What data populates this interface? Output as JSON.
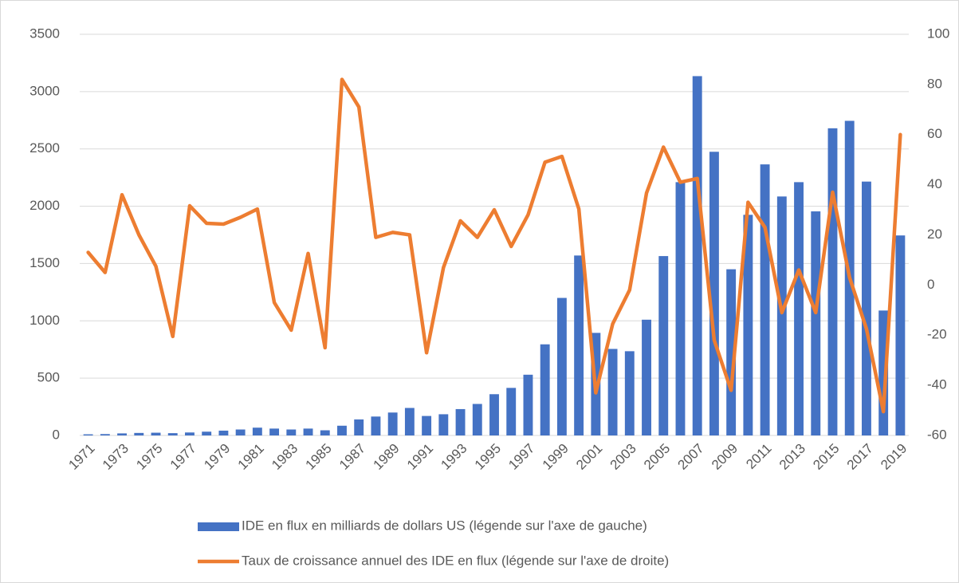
{
  "chart_data": {
    "type": "combo",
    "categories": [
      "1971",
      null,
      "1973",
      null,
      "1975",
      null,
      "1977",
      null,
      "1979",
      null,
      "1981",
      null,
      "1983",
      null,
      "1985",
      null,
      "1987",
      null,
      "1989",
      null,
      "1991",
      null,
      "1993",
      null,
      "1995",
      null,
      "1997",
      null,
      "1999",
      null,
      "2001",
      null,
      "2003",
      null,
      "2005",
      null,
      "2007",
      null,
      "2009",
      null,
      "2011",
      null,
      "2013",
      null,
      "2015",
      null,
      "2017",
      null,
      "2019"
    ],
    "series": [
      {
        "name": "IDE en flux en milliards de dollars US (légende sur l'axe de gauche)",
        "type": "bar",
        "color": "#4472c4",
        "values": [
          10,
          12,
          18,
          22,
          24,
          20,
          26,
          33,
          42,
          52,
          68,
          60,
          52,
          60,
          45,
          85,
          140,
          165,
          200,
          240,
          170,
          185,
          230,
          275,
          360,
          415,
          530,
          795,
          1200,
          1570,
          895,
          755,
          735,
          1010,
          1565,
          2210,
          3135,
          2475,
          1450,
          1925,
          2365,
          2085,
          2210,
          1955,
          2680,
          2745,
          2215,
          1090,
          1745
        ]
      },
      {
        "name": "Taux de croissance annuel des IDE en flux (légende sur l'axe de droite)",
        "type": "line",
        "axis": "y2",
        "color": "#ed7d31",
        "values": [
          13,
          5,
          36,
          20,
          7.5,
          -20.5,
          31.6,
          24.6,
          24.3,
          27,
          30.3,
          -7,
          -18,
          12.6,
          -25,
          82,
          71,
          19,
          21,
          20,
          -27,
          7,
          25.6,
          19,
          30,
          15.4,
          28,
          49,
          51.3,
          30.3,
          -43,
          -15.5,
          -2,
          36.7,
          55,
          41,
          42.5,
          -22,
          -42,
          33,
          23,
          -11,
          6,
          -11,
          37,
          3,
          -17.5,
          -50.5,
          60
        ]
      }
    ],
    "ylim": [
      0,
      3500
    ],
    "yticks": [
      0,
      500,
      1000,
      1500,
      2000,
      2500,
      3000,
      3500
    ],
    "y2lim": [
      -60,
      100
    ],
    "y2ticks": [
      -60,
      -40,
      -20,
      0,
      20,
      40,
      60,
      80,
      100
    ],
    "grid": true
  }
}
